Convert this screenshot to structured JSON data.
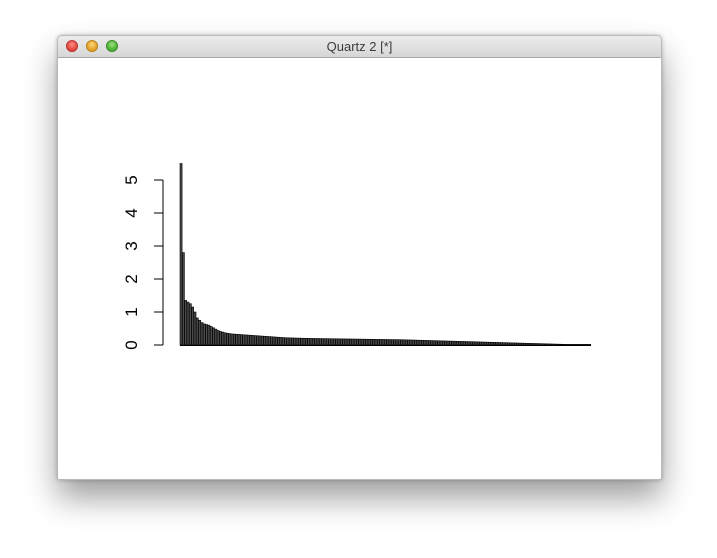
{
  "window": {
    "title": "Quartz 2 [*]"
  },
  "colors": {
    "bars": "#000000",
    "bar_fill": "#4a4a4a",
    "axis": "#000000",
    "close": "#e0443a",
    "minimize": "#e2a027",
    "maximize": "#4bb135"
  },
  "chart_data": {
    "type": "bar",
    "title": "",
    "xlabel": "",
    "ylabel": "",
    "ylim": [
      0,
      5.5
    ],
    "yticks": [
      0,
      1,
      2,
      3,
      4,
      5
    ],
    "ytick_labels": [
      "0",
      "1",
      "2",
      "3",
      "4",
      "5"
    ],
    "x_axis_shown": false,
    "grid": false,
    "values": [
      5.5,
      2.8,
      1.35,
      1.3,
      1.25,
      1.15,
      1.0,
      0.82,
      0.75,
      0.68,
      0.64,
      0.62,
      0.6,
      0.56,
      0.52,
      0.48,
      0.44,
      0.41,
      0.39,
      0.37,
      0.355,
      0.345,
      0.335,
      0.33,
      0.325,
      0.32,
      0.315,
      0.31,
      0.305,
      0.3,
      0.295,
      0.29,
      0.285,
      0.28,
      0.275,
      0.27,
      0.265,
      0.26,
      0.255,
      0.25,
      0.245,
      0.24,
      0.235,
      0.23,
      0.225,
      0.22,
      0.218,
      0.216,
      0.214,
      0.212,
      0.21,
      0.208,
      0.206,
      0.204,
      0.202,
      0.2,
      0.199,
      0.198,
      0.197,
      0.196,
      0.195,
      0.194,
      0.193,
      0.192,
      0.191,
      0.19,
      0.189,
      0.188,
      0.187,
      0.186,
      0.185,
      0.184,
      0.183,
      0.182,
      0.181,
      0.18,
      0.179,
      0.178,
      0.177,
      0.176,
      0.175,
      0.174,
      0.173,
      0.172,
      0.171,
      0.17,
      0.169,
      0.168,
      0.167,
      0.166,
      0.165,
      0.164,
      0.163,
      0.162,
      0.161,
      0.16,
      0.158,
      0.156,
      0.154,
      0.152,
      0.15,
      0.148,
      0.146,
      0.144,
      0.142,
      0.14,
      0.138,
      0.136,
      0.134,
      0.132,
      0.13,
      0.128,
      0.126,
      0.124,
      0.122,
      0.12,
      0.118,
      0.116,
      0.114,
      0.112,
      0.11,
      0.108,
      0.106,
      0.104,
      0.102,
      0.1,
      0.098,
      0.096,
      0.094,
      0.092,
      0.09,
      0.088,
      0.086,
      0.084,
      0.082,
      0.08,
      0.078,
      0.076,
      0.074,
      0.072,
      0.07,
      0.068,
      0.066,
      0.064,
      0.062,
      0.06,
      0.058,
      0.056,
      0.054,
      0.052,
      0.05,
      0.048,
      0.046,
      0.044,
      0.042,
      0.04,
      0.038,
      0.036,
      0.034,
      0.032,
      0.03,
      0.028,
      0.026,
      0.024,
      0.022,
      0.02,
      0.018,
      0.016,
      0.014,
      0.012,
      0.01,
      0.008,
      0.006,
      0.004,
      0.003,
      0.002,
      0.001
    ]
  }
}
